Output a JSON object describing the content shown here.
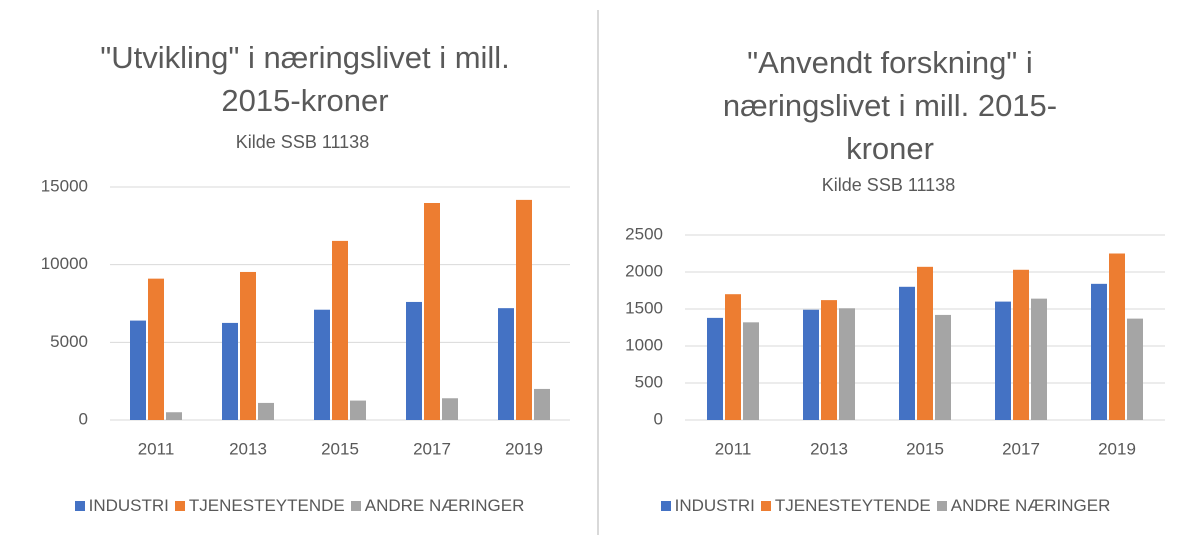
{
  "chart_data": [
    {
      "type": "bar",
      "title": "\"Utvikling\" i næringslivet i mill. 2015-kroner",
      "subtitle": "Kilde SSB 11138",
      "categories": [
        "2011",
        "2013",
        "2015",
        "2017",
        "2019"
      ],
      "series": [
        {
          "name": "INDUSTRI",
          "color": "#4472c4",
          "values": [
            6400,
            6250,
            7100,
            7600,
            7200
          ]
        },
        {
          "name": "TJENESTEYTENDE",
          "color": "#ed7d31",
          "values": [
            9100,
            9530,
            11530,
            13970,
            14170
          ]
        },
        {
          "name": "ANDRE NÆRINGER",
          "color": "#a5a5a5",
          "values": [
            500,
            1100,
            1250,
            1400,
            2000
          ]
        }
      ],
      "ylim": [
        0,
        15000
      ],
      "yticks": [
        0,
        5000,
        10000,
        15000
      ],
      "grid": true,
      "legend": "bottom"
    },
    {
      "type": "bar",
      "title": "\"Anvendt forskning\" i næringslivet i mill. 2015-kroner",
      "subtitle": "Kilde SSB 11138",
      "categories": [
        "2011",
        "2013",
        "2015",
        "2017",
        "2019"
      ],
      "series": [
        {
          "name": "INDUSTRI",
          "color": "#4472c4",
          "values": [
            1380,
            1490,
            1800,
            1600,
            1840
          ]
        },
        {
          "name": "TJENESTEYTENDE",
          "color": "#ed7d31",
          "values": [
            1700,
            1620,
            2070,
            2030,
            2250
          ]
        },
        {
          "name": "ANDRE NÆRINGER",
          "color": "#a5a5a5",
          "values": [
            1320,
            1510,
            1420,
            1640,
            1370
          ]
        }
      ],
      "ylim": [
        0,
        2500
      ],
      "yticks": [
        0,
        500,
        1000,
        1500,
        2000,
        2500
      ],
      "grid": true,
      "legend": "bottom"
    }
  ]
}
